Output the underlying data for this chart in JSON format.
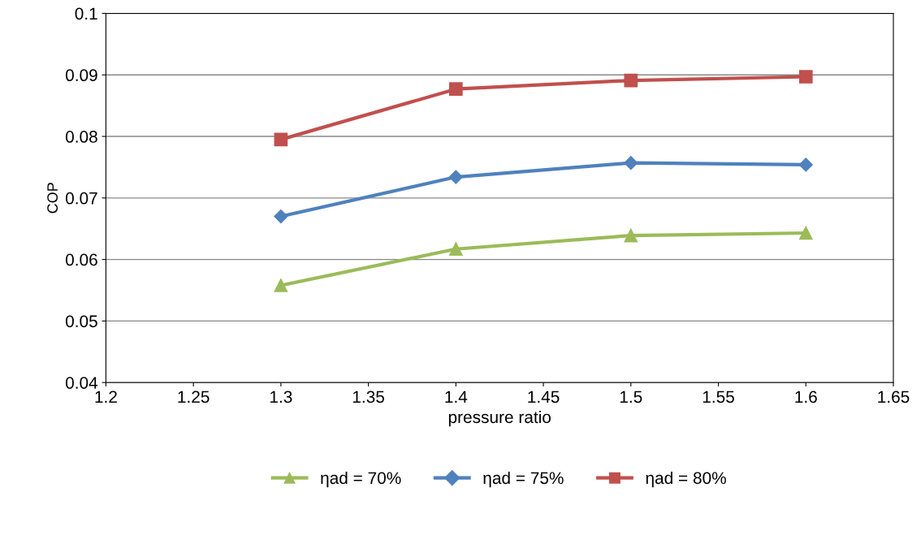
{
  "chart_data": {
    "type": "line",
    "xlabel": "pressure ratio",
    "ylabel": "COP",
    "x": [
      1.3,
      1.4,
      1.5,
      1.6
    ],
    "series": [
      {
        "name": "ηad = 70%",
        "color": "#9bbb59",
        "marker": "triangle",
        "values": [
          0.0558,
          0.0617,
          0.0639,
          0.0643
        ]
      },
      {
        "name": "ηad = 75%",
        "color": "#4f81bd",
        "marker": "diamond",
        "values": [
          0.067,
          0.0734,
          0.0757,
          0.0754
        ]
      },
      {
        "name": "ηad = 80%",
        "color": "#c0504d",
        "marker": "square",
        "values": [
          0.0795,
          0.0877,
          0.0891,
          0.0897
        ]
      }
    ],
    "xlim": [
      1.2,
      1.65
    ],
    "xticks": [
      1.2,
      1.25,
      1.3,
      1.35,
      1.4,
      1.45,
      1.5,
      1.55,
      1.6,
      1.65
    ],
    "ylim": [
      0.04,
      0.1
    ],
    "yticks": [
      0.04,
      0.05,
      0.06,
      0.07,
      0.08,
      0.09,
      0.1
    ],
    "grid": "y",
    "legend": "bottom",
    "line_style": "solid"
  }
}
